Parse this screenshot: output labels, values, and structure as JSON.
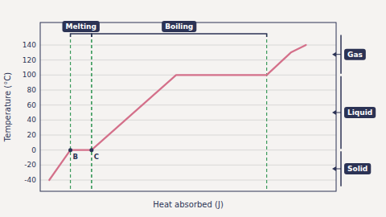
{
  "chart_data": {
    "type": "line",
    "xlabel": "Heat absorbed (J)",
    "ylabel": "Temperature (°C)",
    "x": [
      0.3,
      1.0,
      1.7,
      4.5,
      7.5,
      8.3,
      8.8
    ],
    "values": [
      -40,
      0,
      0,
      100,
      100,
      130,
      140
    ],
    "color": "#d4708a",
    "xlim": [
      0.0,
      9.8
    ],
    "ylim": [
      -55,
      170
    ],
    "yticks": [
      -40,
      -20,
      0,
      20,
      40,
      60,
      80,
      100,
      120,
      140
    ],
    "grid": true,
    "tick_labels": "y",
    "annotations": [
      {
        "text": "Melting",
        "x": [
          1.0,
          1.7
        ],
        "y": 155
      },
      {
        "text": "Boiling",
        "x": [
          1.7,
          7.5
        ],
        "y": 155
      },
      {
        "text": "Gas",
        "y": [
          100,
          155
        ]
      },
      {
        "text": "Liquid",
        "y": [
          0,
          100
        ]
      },
      {
        "text": "Solid",
        "y": [
          -50,
          0
        ]
      },
      {
        "text": "B",
        "x": 1.0,
        "y": 0
      },
      {
        "text": "C",
        "x": 1.7,
        "y": 0
      }
    ]
  }
}
